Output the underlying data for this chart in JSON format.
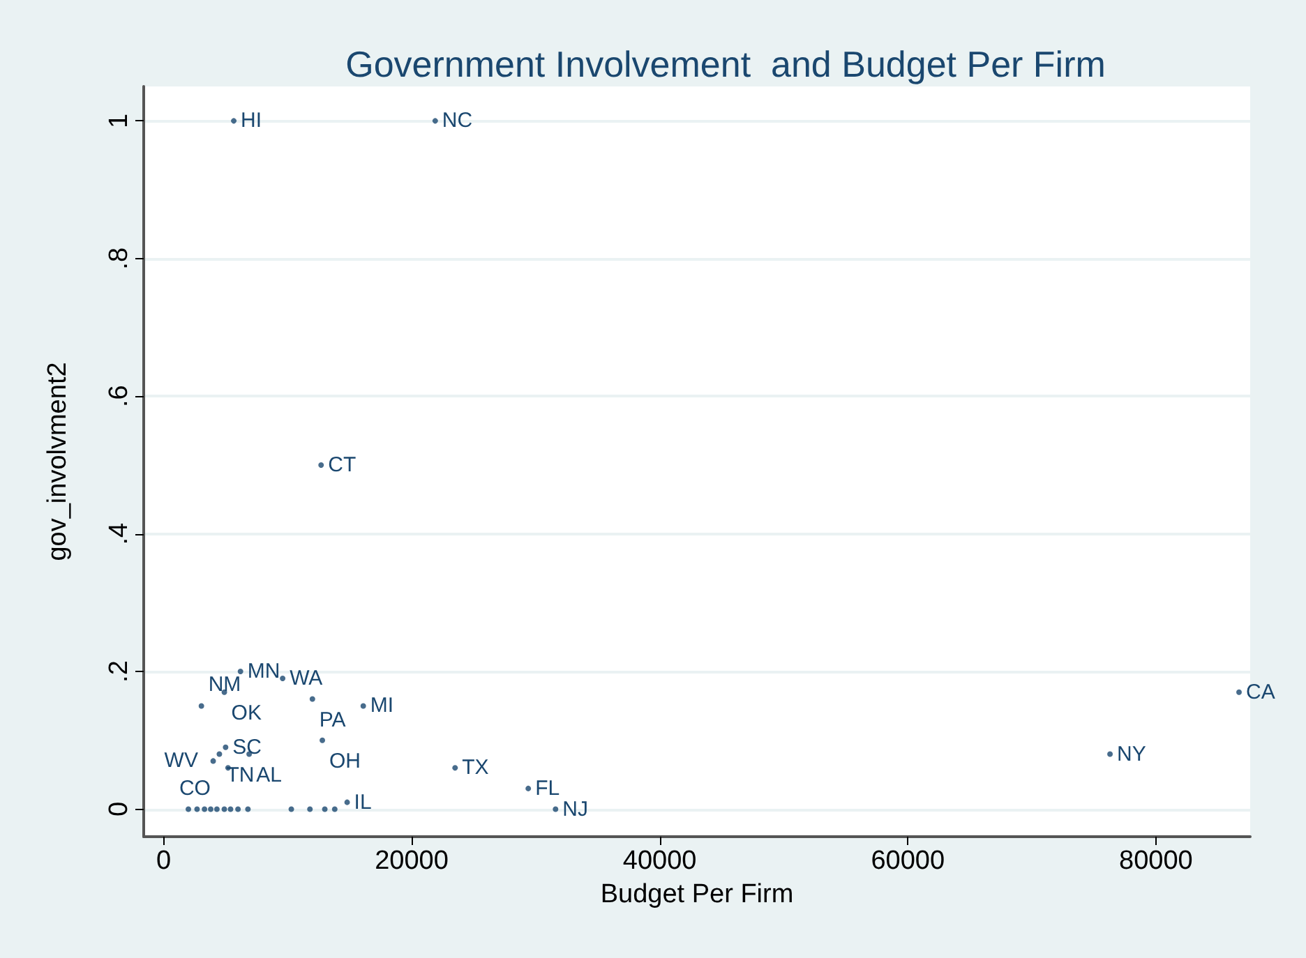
{
  "chart_data": {
    "type": "scatter",
    "title": "Government Involvement  and Budget Per Firm",
    "xlabel": "Budget Per Firm",
    "ylabel": "gov_involvment2",
    "x": [
      5660,
      21900,
      12700,
      6200,
      9600,
      4900,
      3050,
      12000,
      16100,
      12800,
      5000,
      6900,
      4500,
      4000,
      5200,
      23500,
      29400,
      31600,
      76300,
      86700,
      2000,
      2700,
      3300,
      3800,
      4300,
      4900,
      5400,
      6000,
      6800,
      10300,
      11800,
      13000,
      13800,
      14800
    ],
    "series": [
      {
        "color": "#1a476f",
        "values": [
          1,
          1,
          0.5,
          0.2,
          0.19,
          0.17,
          0.15,
          0.16,
          0.15,
          0.1,
          0.09,
          0.08,
          0.08,
          0.07,
          0.06,
          0.06,
          0.03,
          0,
          0.08,
          0.17,
          0,
          0,
          0,
          0,
          0,
          0,
          0,
          0,
          0,
          0,
          0,
          0,
          0,
          0.01
        ],
        "value_labels": [
          "HI",
          "NC",
          "CT",
          "MN",
          "WA",
          "OK",
          "NM",
          "PA",
          "MI",
          "OH",
          "SC",
          "AL",
          "TN",
          "WV",
          "CO",
          "TX",
          "FL",
          "NJ",
          "NY",
          "CA",
          null,
          null,
          null,
          null,
          null,
          null,
          null,
          null,
          null,
          null,
          null,
          null,
          null,
          "IL"
        ]
      }
    ],
    "xlim": [
      -1600,
      87600
    ],
    "ylim": [
      -0.04,
      1.05
    ],
    "xticks": [
      0,
      20000,
      40000,
      60000,
      80000
    ],
    "yticks": [
      0,
      {
        "value": 0.2,
        "label": ".2"
      },
      {
        "value": 0.4,
        "label": ".4"
      },
      {
        "value": 0.6,
        "label": ".6"
      },
      {
        "value": 0.8,
        "label": ".8"
      },
      1
    ],
    "grid": "y",
    "marker": "circle"
  }
}
